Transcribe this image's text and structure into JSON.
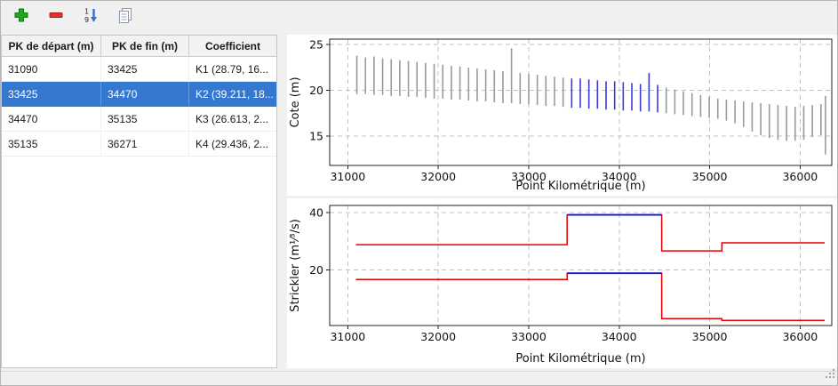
{
  "window": {
    "bg": "#f0f0f0",
    "selection_color": "#3478d0"
  },
  "toolbar": {
    "buttons": [
      {
        "name": "add",
        "icon": "plus-icon"
      },
      {
        "name": "remove",
        "icon": "minus-icon"
      },
      {
        "name": "sort",
        "icon": "sort-numeric-icon"
      },
      {
        "name": "copy",
        "icon": "document-icon"
      }
    ]
  },
  "table": {
    "columns": [
      "PK de départ (m)",
      "PK de fin (m)",
      "Coefficient"
    ],
    "rows": [
      {
        "pk_start": "31090",
        "pk_end": "33425",
        "coefficient": "K1 (28.79, 16...",
        "selected": false
      },
      {
        "pk_start": "33425",
        "pk_end": "34470",
        "coefficient": "K2 (39.211, 18...",
        "selected": true
      },
      {
        "pk_start": "34470",
        "pk_end": "35135",
        "coefficient": "K3 (26.613, 2...",
        "selected": false
      },
      {
        "pk_start": "35135",
        "pk_end": "36271",
        "coefficient": "K4 (29.436, 2...",
        "selected": false
      }
    ]
  },
  "chart_data": [
    {
      "type": "bar",
      "title": "",
      "xlabel": "Point Kilométrique (m)",
      "ylabel": "Cote (m)",
      "xlim": [
        30800,
        36350
      ],
      "ylim": [
        11.8,
        25.6
      ],
      "xticks": [
        31000,
        32000,
        33000,
        34000,
        35000,
        36000
      ],
      "yticks": [
        15,
        20,
        25
      ],
      "grid": true,
      "legend": "none",
      "bar_color": "#9a9a9a",
      "highlight_color": "#3a3ad6",
      "highlight_range": [
        33425,
        34470
      ],
      "x": [
        31100,
        31195,
        31290,
        31385,
        31480,
        31575,
        31670,
        31765,
        31860,
        31955,
        32050,
        32145,
        32240,
        32335,
        32430,
        32525,
        32620,
        32715,
        32810,
        32905,
        33000,
        33095,
        33190,
        33285,
        33380,
        33475,
        33570,
        33665,
        33760,
        33855,
        33950,
        34045,
        34140,
        34235,
        34330,
        34425,
        34520,
        34615,
        34710,
        34805,
        34900,
        34995,
        35090,
        35185,
        35280,
        35375,
        35470,
        35565,
        35660,
        35755,
        35850,
        35945,
        36040,
        36135,
        36230,
        36280
      ],
      "top": [
        23.8,
        23.6,
        23.7,
        23.5,
        23.4,
        23.3,
        23.2,
        23.1,
        23.0,
        22.9,
        22.8,
        22.7,
        22.6,
        22.5,
        22.4,
        22.3,
        22.2,
        22.1,
        24.6,
        21.9,
        21.8,
        21.7,
        21.6,
        21.5,
        21.4,
        21.3,
        21.3,
        21.2,
        21.1,
        21.0,
        21.0,
        20.9,
        20.8,
        20.7,
        21.9,
        20.6,
        20.3,
        20.1,
        19.9,
        19.7,
        19.5,
        19.3,
        19.1,
        19.0,
        18.9,
        18.8,
        18.7,
        18.6,
        18.5,
        18.4,
        18.3,
        18.2,
        18.3,
        18.4,
        18.5,
        19.4
      ],
      "bottom": [
        19.6,
        19.6,
        19.5,
        19.5,
        19.4,
        19.4,
        19.3,
        19.3,
        19.2,
        19.1,
        19.1,
        19.0,
        19.0,
        18.9,
        18.8,
        18.8,
        18.7,
        18.6,
        18.6,
        18.5,
        18.5,
        18.4,
        18.3,
        18.3,
        18.2,
        18.1,
        18.1,
        18.0,
        18.0,
        17.9,
        17.9,
        17.8,
        17.8,
        17.7,
        17.7,
        17.6,
        17.5,
        17.4,
        17.3,
        17.2,
        17.1,
        17.0,
        16.9,
        16.7,
        16.4,
        16.0,
        15.5,
        15.1,
        14.8,
        14.6,
        14.5,
        14.5,
        14.6,
        14.9,
        15.1,
        13.0
      ]
    },
    {
      "type": "line",
      "title": "",
      "xlabel": "Point Kilométrique (m)",
      "ylabel": "Strickler (m¹⁄³/s)",
      "xlim": [
        30800,
        36350
      ],
      "ylim": [
        0.5,
        42.5
      ],
      "xticks": [
        31000,
        32000,
        33000,
        34000,
        35000,
        36000
      ],
      "yticks": [
        20,
        40
      ],
      "grid": true,
      "legend": "none",
      "line_color": "#e60000",
      "highlight_color": "#1515d8",
      "segments": [
        {
          "pk_start": 31090,
          "pk_end": 33425,
          "upper": 28.79,
          "lower": 16.6,
          "selected": false
        },
        {
          "pk_start": 33425,
          "pk_end": 34470,
          "upper": 39.211,
          "lower": 18.8,
          "selected": true
        },
        {
          "pk_start": 34470,
          "pk_end": 35135,
          "upper": 26.613,
          "lower": 2.9,
          "selected": false
        },
        {
          "pk_start": 35135,
          "pk_end": 36271,
          "upper": 29.436,
          "lower": 2.3,
          "selected": false
        }
      ]
    }
  ]
}
